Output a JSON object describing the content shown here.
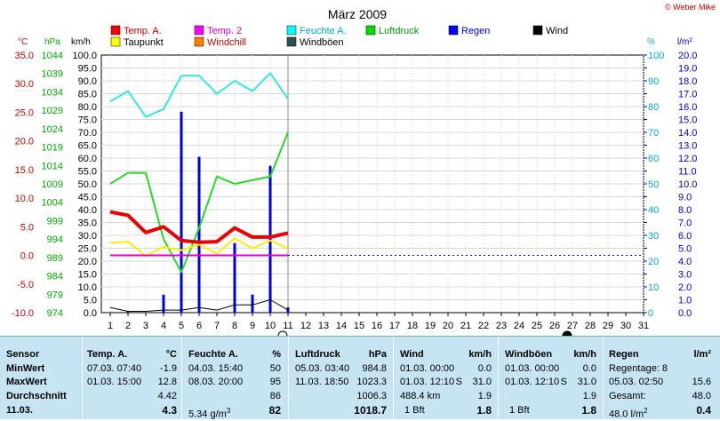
{
  "chart_data": {
    "type": "line",
    "title": "März 2009",
    "copyright": "© Weber Mike",
    "units": {
      "temp": "°C",
      "pressure": "hPa",
      "wind": "km/h",
      "humidity": "%",
      "rain": "l/m²"
    },
    "x": [
      1,
      2,
      3,
      4,
      5,
      6,
      7,
      8,
      9,
      10,
      11,
      12,
      13,
      14,
      15,
      16,
      17,
      18,
      19,
      20,
      21,
      22,
      23,
      24,
      25,
      26,
      27,
      28,
      29,
      30,
      31
    ],
    "axes": {
      "temp": {
        "min": -10,
        "max": 35,
        "step": 5,
        "labels": [
          "-10.0",
          "-5.0",
          "0.0",
          "5.0",
          "10.0",
          "15.0",
          "20.0",
          "25.0",
          "30.0",
          "35.0"
        ],
        "color": "#cc0000"
      },
      "pressure": {
        "labels": [
          "974",
          "979",
          "984",
          "989",
          "994",
          "999",
          "1004",
          "1009",
          "1014",
          "1019",
          "1024",
          "1029",
          "1034",
          "1039",
          "1044"
        ],
        "color": "#00aa00"
      },
      "wind": {
        "min": 0,
        "max": 100,
        "step": 5,
        "labels": [
          "0.0",
          "5.0",
          "10.0",
          "15.0",
          "20.0",
          "25.0",
          "30.0",
          "35.0",
          "40.0",
          "45.0",
          "50.0",
          "55.0",
          "60.0",
          "65.0",
          "70.0",
          "75.0",
          "80.0",
          "85.0",
          "90.0",
          "95.0",
          "100.0"
        ],
        "color": "#000000"
      },
      "humidity": {
        "min": 0,
        "max": 100,
        "step": 10,
        "labels": [
          "0",
          "10",
          "20",
          "30",
          "40",
          "50",
          "60",
          "70",
          "80",
          "90",
          "100"
        ],
        "color": "#00aacc"
      },
      "rain": {
        "min": 0,
        "max": 20,
        "step": 1,
        "labels": [
          "0.0",
          "1.0",
          "2.0",
          "3.0",
          "4.0",
          "5.0",
          "6.0",
          "7.0",
          "8.0",
          "9.0",
          "10.0",
          "11.0",
          "12.0",
          "13.0",
          "14.0",
          "15.0",
          "16.0",
          "17.0",
          "18.0",
          "19.0",
          "20.0"
        ],
        "color": "#0000cc"
      }
    },
    "legend": [
      {
        "name": "Temp. A.",
        "color": "#ff0000"
      },
      {
        "name": "Temp. 2",
        "color": "#ff00ff"
      },
      {
        "name": "Feuchte A.",
        "color": "#00ffff"
      },
      {
        "name": "Luftdruck",
        "color": "#00dd00"
      },
      {
        "name": "Regen",
        "color": "#0000ff"
      },
      {
        "name": "Wind",
        "color": "#000000"
      },
      {
        "name": "Taupunkt",
        "color": "#ffff00"
      },
      {
        "name": "Windchill",
        "color": "#ff8000"
      },
      {
        "name": "Windböen",
        "color": "#2f4f4f"
      }
    ],
    "series": [
      {
        "name": "Feuchte A.",
        "axis": "humidity",
        "color": "#33e6e6",
        "width": 2,
        "x": [
          1,
          2,
          3,
          4,
          5,
          6,
          7,
          8,
          9,
          10,
          11
        ],
        "values": [
          82,
          86,
          76,
          79,
          92,
          92,
          85,
          90,
          86,
          93,
          83
        ]
      },
      {
        "name": "Luftdruck",
        "axis": "pressure",
        "color": "#22dd22",
        "width": 2,
        "x": [
          1,
          2,
          3,
          4,
          5,
          6,
          7,
          8,
          9,
          10,
          11
        ],
        "values": [
          1009,
          1012,
          1012,
          994,
          985,
          997,
          1011,
          1009,
          1010,
          1011,
          1023
        ]
      },
      {
        "name": "Taupunkt",
        "axis": "temp",
        "color": "#ffee00",
        "width": 2,
        "x": [
          1,
          2,
          3,
          4,
          5,
          6,
          7,
          8,
          9,
          10,
          11
        ],
        "values": [
          2.2,
          2.4,
          -0.1,
          1.5,
          0.9,
          1.9,
          0.3,
          3.0,
          1.2,
          2.6,
          1.2
        ]
      },
      {
        "name": "Temp. A.",
        "axis": "temp",
        "color": "#ee0000",
        "width": 4,
        "x": [
          1,
          2,
          3,
          4,
          5,
          6,
          7,
          8,
          9,
          10,
          11
        ],
        "values": [
          7.6,
          7.0,
          4.0,
          5.0,
          2.6,
          2.3,
          2.4,
          4.8,
          3.2,
          3.2,
          3.9
        ]
      },
      {
        "name": "Temp. 2",
        "axis": "temp",
        "color": "#dd00dd",
        "width": 2,
        "x": [
          1,
          11
        ],
        "values": [
          0,
          0
        ]
      },
      {
        "name": "Wind",
        "axis": "wind",
        "color": "#000000",
        "width": 1,
        "x": [
          1,
          2,
          3,
          4,
          5,
          6,
          7,
          8,
          9,
          10,
          11
        ],
        "values": [
          2,
          0.5,
          0.5,
          1,
          1,
          2,
          1,
          3,
          3,
          5,
          1
        ]
      }
    ],
    "bars": {
      "name": "Regen",
      "axis": "rain",
      "color": "#0000dd",
      "x": [
        2,
        4,
        5,
        6,
        8,
        9,
        10,
        11
      ],
      "values": [
        0.1,
        1.4,
        15.6,
        12.1,
        5.4,
        1.4,
        11.4,
        0.4
      ]
    },
    "gridlines_vertical": "dotted",
    "marker_day": 11,
    "moon": {
      "full": 11,
      "new": 27
    }
  },
  "table": {
    "sensor_col": [
      "Sensor",
      "MinWert",
      "MaxWert",
      "Durchschnitt",
      "11.03."
    ],
    "temp": {
      "header": "Temp. A.",
      "unit": "°C",
      "min_time": "07.03.  07:40",
      "min_value": "-1.9",
      "max_time": "01.03.  15:00",
      "max_value": "12.8",
      "avg_value": "4.42",
      "current_value": "4.3"
    },
    "humidity": {
      "header": "Feuchte A.",
      "unit": "%",
      "min_time": "04.03.  15:40",
      "min_value": "50",
      "max_time": "08.03.  20:00",
      "max_value": "95",
      "avg_value": "86",
      "current_extra": "5.34 g/m",
      "current_extra_exp": "3",
      "current_value": "82"
    },
    "pressure": {
      "header": "Luftdruck",
      "unit": "hPa",
      "min_time": "05.03.  03:40",
      "min_value": "984.8",
      "max_time": "11.03.  18:50",
      "max_value": "1023.3",
      "avg_value": "1006.3",
      "current_value": "1018.7"
    },
    "wind": {
      "header": "Wind",
      "unit": "km/h",
      "min_time": "01.03.  00:00",
      "min_value": "0.0",
      "max_time": "01.03.  12:10",
      "max_dir": "S",
      "max_value": "31.0",
      "distance": "488.4 km",
      "avg_value": "1.9",
      "current_bft": "1 Bft",
      "current_value": "1.8"
    },
    "gusts": {
      "header": "Windböen",
      "unit": "km/h",
      "min_time": "01.03.  00:00",
      "min_value": "0.0",
      "max_time": "01.03.  12:10",
      "max_dir": "S",
      "max_value": "31.0",
      "avg_value": "1.9",
      "current_bft": "1 Bft",
      "current_value": "1.8"
    },
    "rain": {
      "header": "Regen",
      "unit": "l/m²",
      "rain_days": "Regentage: 8",
      "max_time": "05.03.  02:50",
      "max_value": "15.6",
      "total_label": "Gesamt:",
      "total_value": "48.0",
      "current_extra": "48.0 l/m",
      "current_extra_exp": "2",
      "current_value": "0.4"
    }
  }
}
